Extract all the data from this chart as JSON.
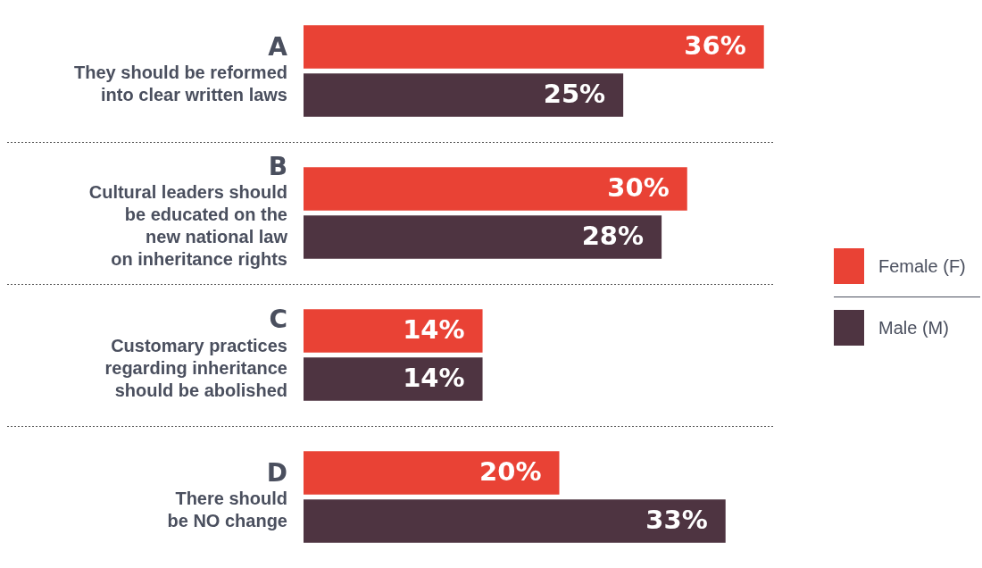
{
  "chart_data": {
    "type": "bar",
    "orientation": "horizontal",
    "categories": [
      "A\nThey should be reformed\ninto clear written laws",
      "B\nCultural leaders should\nbe educated on the\nnew national law\non inheritance rights",
      "C\nCustomary practices\nregarding inheritance\nshould be abolished",
      "D\nThere should\nbe NO change"
    ],
    "series": [
      {
        "name": "Female (F)",
        "color": "#e94235",
        "values": [
          36,
          30,
          14,
          20
        ],
        "value_labels": [
          "36%",
          "30%",
          "14%",
          "20%"
        ]
      },
      {
        "name": "Male (M)",
        "color": "#4e3441",
        "values": [
          25,
          28,
          14,
          33
        ],
        "value_labels": [
          "25%",
          "28%",
          "14%",
          "33%"
        ]
      }
    ],
    "grid": "y",
    "legend": "right"
  }
}
